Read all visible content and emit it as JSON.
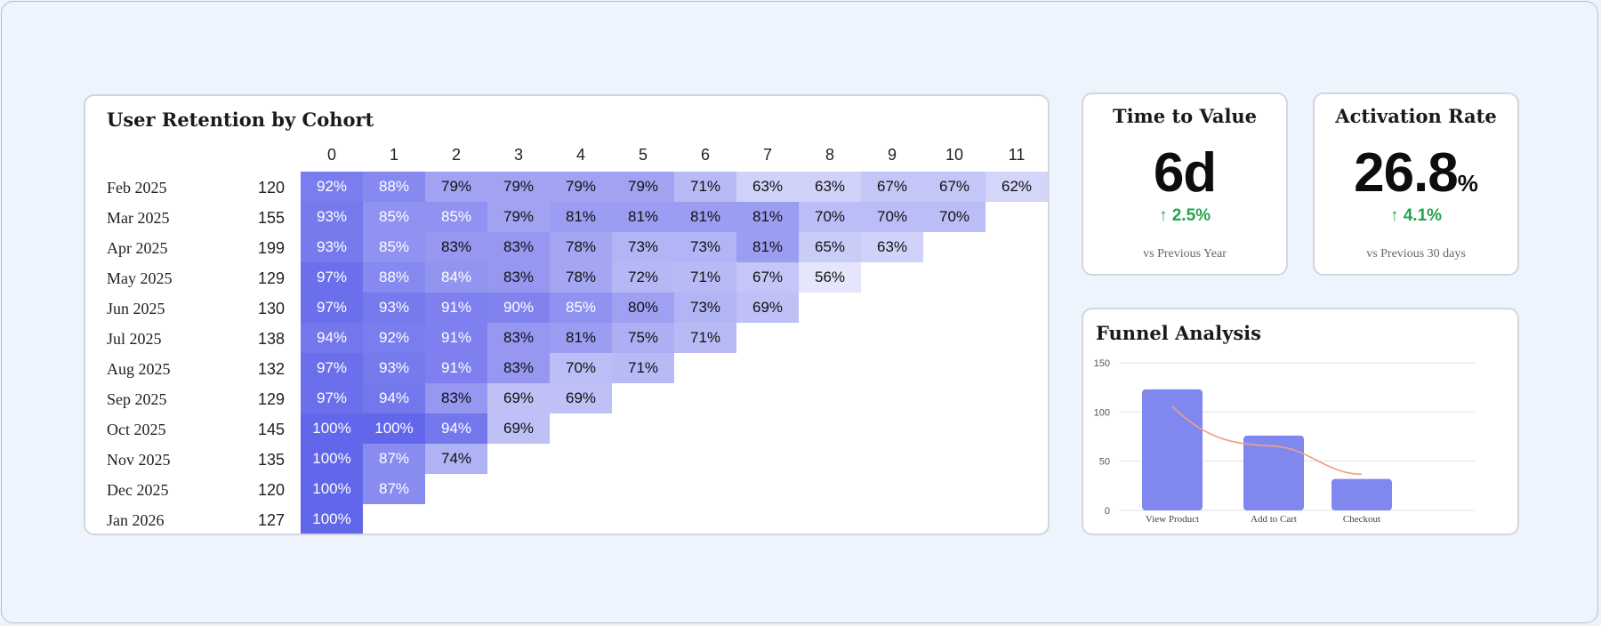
{
  "retention": {
    "title": "User Retention by Cohort",
    "periods": [
      "0",
      "1",
      "2",
      "3",
      "4",
      "5",
      "6",
      "7",
      "8",
      "9",
      "10",
      "11"
    ],
    "cohorts": [
      {
        "label": "Feb 2025",
        "size": "120",
        "values": [
          92,
          88,
          79,
          79,
          79,
          79,
          71,
          63,
          63,
          67,
          67,
          62
        ]
      },
      {
        "label": "Mar 2025",
        "size": "155",
        "values": [
          93,
          85,
          85,
          79,
          81,
          81,
          81,
          81,
          70,
          70,
          70
        ]
      },
      {
        "label": "Apr 2025",
        "size": "199",
        "values": [
          93,
          85,
          83,
          83,
          78,
          73,
          73,
          81,
          65,
          63
        ]
      },
      {
        "label": "May 2025",
        "size": "129",
        "values": [
          97,
          88,
          84,
          83,
          78,
          72,
          71,
          67,
          56
        ]
      },
      {
        "label": "Jun 2025",
        "size": "130",
        "values": [
          97,
          93,
          91,
          90,
          85,
          80,
          73,
          69
        ]
      },
      {
        "label": "Jul 2025",
        "size": "138",
        "values": [
          94,
          92,
          91,
          83,
          81,
          75,
          71
        ]
      },
      {
        "label": "Aug 2025",
        "size": "132",
        "values": [
          97,
          93,
          91,
          83,
          70,
          71
        ]
      },
      {
        "label": "Sep 2025",
        "size": "129",
        "values": [
          97,
          94,
          83,
          69,
          69
        ]
      },
      {
        "label": "Oct 2025",
        "size": "145",
        "values": [
          100,
          100,
          94,
          69
        ]
      },
      {
        "label": "Nov 2025",
        "size": "135",
        "values": [
          100,
          87,
          74
        ]
      },
      {
        "label": "Dec 2025",
        "size": "120",
        "values": [
          100,
          87
        ]
      },
      {
        "label": "Jan 2026",
        "size": "127",
        "values": [
          100
        ]
      }
    ],
    "colors": {
      "dark": "#6266ea",
      "light": "#e8e9fc",
      "text_dark": "#ffffff",
      "text_light": "#111111"
    }
  },
  "kpis": {
    "time_to_value": {
      "title": "Time to Value",
      "value": "6d",
      "unit": "",
      "change": "↑ 2.5%",
      "subtitle": "vs Previous Year"
    },
    "activation_rate": {
      "title": "Activation Rate",
      "value": "26.8",
      "unit": "%",
      "change": "↑ 4.1%",
      "subtitle": "vs Previous 30 days"
    },
    "positive_color": "#22a44a"
  },
  "funnel": {
    "title": "Funnel Analysis",
    "chart_data": {
      "type": "bar",
      "categories": [
        "View Product",
        "Add to Cart",
        "Checkout"
      ],
      "values": [
        123,
        76,
        32
      ],
      "ylim": [
        0,
        150
      ],
      "yticks": [
        0,
        50,
        100,
        150
      ],
      "grid": true,
      "bar_color": "#8088f0",
      "trend_color": "#f0a07e"
    }
  }
}
